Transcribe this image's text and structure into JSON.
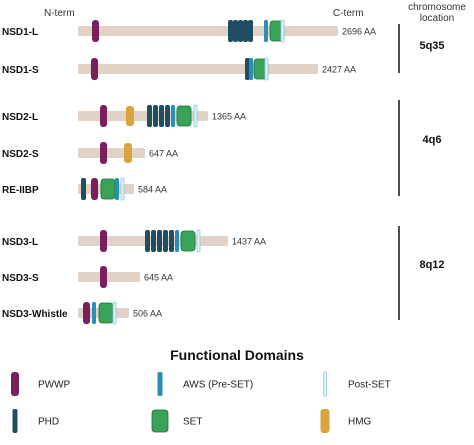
{
  "header": {
    "nterm": "N-term",
    "cterm": "C-term",
    "chromosome": [
      "chromosome",
      "location"
    ]
  },
  "colors": {
    "backbone": "#e2d2c6",
    "pwwp": "#7a1f5e",
    "phd": "#1f4e63",
    "aws": "#2a8fb8",
    "set": "#3aa35a",
    "postset": "#dff1f8",
    "hmg": "#d9a43c",
    "divider": "#222222"
  },
  "proteins": [
    {
      "name": "NSD1-L",
      "length": "2696 AA",
      "domains": [
        "pwwp",
        "phd",
        "phd",
        "phd",
        "phd",
        "phd",
        "aws",
        "set",
        "postset"
      ]
    },
    {
      "name": "NSD1-S",
      "length": "2427 AA",
      "domains": [
        "pwwp",
        "phd",
        "aws",
        "set",
        "postset"
      ]
    },
    {
      "name": "NSD2-L",
      "length": "1365 AA",
      "domains": [
        "pwwp",
        "hmg",
        "phd",
        "phd",
        "phd",
        "phd",
        "aws",
        "set",
        "postset"
      ]
    },
    {
      "name": "NSD2-S",
      "length": "647 AA",
      "domains": [
        "pwwp",
        "hmg"
      ]
    },
    {
      "name": "RE-IIBP",
      "length": "584 AA",
      "domains": [
        "phd",
        "pwwp",
        "set",
        "aws",
        "postset"
      ]
    },
    {
      "name": "NSD3-L",
      "length": "1437 AA",
      "domains": [
        "pwwp",
        "phd",
        "phd",
        "phd",
        "phd",
        "phd",
        "aws",
        "set",
        "postset"
      ]
    },
    {
      "name": "NSD3-S",
      "length": "645 AA",
      "domains": [
        "pwwp"
      ]
    },
    {
      "name": "NSD3-Whistle",
      "length": "506 AA",
      "domains": [
        "pwwp",
        "aws",
        "set",
        "postset"
      ]
    }
  ],
  "chromosome_groups": [
    {
      "label": "5q35"
    },
    {
      "label": "4q6"
    },
    {
      "label": "8q12"
    }
  ],
  "legend": {
    "title": "Functional Domains",
    "items": [
      {
        "key": "pwwp",
        "label": "PWWP"
      },
      {
        "key": "aws",
        "label": "AWS (Pre-SET)"
      },
      {
        "key": "postset",
        "label": "Post-SET"
      },
      {
        "key": "phd",
        "label": "PHD"
      },
      {
        "key": "set",
        "label": "SET"
      },
      {
        "key": "hmg",
        "label": "HMG"
      }
    ]
  }
}
